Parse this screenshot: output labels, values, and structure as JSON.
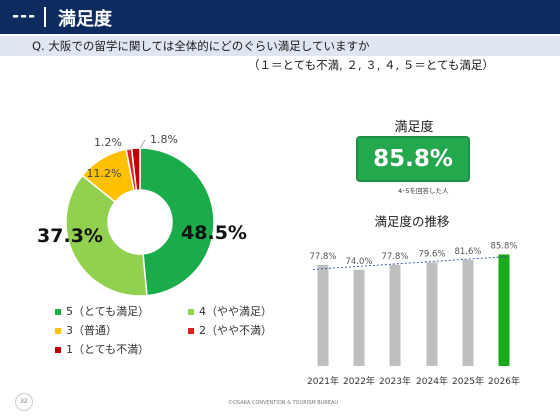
{
  "header": {
    "dashes": "---",
    "title": "満足度"
  },
  "question": {
    "text": "Q. 大阪での留学に関しては全体的にどのぐらい満足していますか",
    "scale": "（１＝とても不満, ２, ３, ４, ５＝とても満足）"
  },
  "satisfaction": {
    "label": "満足度",
    "value": "85.8%",
    "note": "4･5を回答した人"
  },
  "footer": {
    "page": "32",
    "copyright": "©OSAKA CONVENTION & TOURISM BUREAU"
  },
  "chart_data": [
    {
      "type": "pie",
      "style": "donut",
      "slices": [
        {
          "label": "5（とても満足）",
          "value": 48.5,
          "display": "48.5%",
          "color": "#1aab4b"
        },
        {
          "label": "4（やや満足）",
          "value": 37.3,
          "display": "37.3%",
          "color": "#92d050"
        },
        {
          "label": "3（普通）",
          "value": 11.2,
          "display": "11.2%",
          "color": "#ffc000"
        },
        {
          "label": "2（やや不満）",
          "value": 1.2,
          "display": "1.2%",
          "color": "#e02020"
        },
        {
          "label": "1（とても不満）",
          "value": 1.8,
          "display": "1.8%",
          "color": "#c00000"
        }
      ],
      "legend_position": "bottom"
    },
    {
      "type": "bar",
      "title": "満足度の推移",
      "categories": [
        "2021年",
        "2022年",
        "2023年",
        "2024年",
        "2025年",
        "2026年"
      ],
      "values": [
        77.8,
        74.0,
        77.8,
        79.6,
        81.6,
        85.8
      ],
      "value_labels": [
        "77.8%",
        "74.0%",
        "77.8%",
        "79.6%",
        "81.6%",
        "85.8%"
      ],
      "bar_colors": [
        "#bfbfbf",
        "#bfbfbf",
        "#bfbfbf",
        "#bfbfbf",
        "#bfbfbf",
        "#1aab1a"
      ],
      "trendline": true,
      "ylim": [
        0,
        100
      ]
    }
  ]
}
